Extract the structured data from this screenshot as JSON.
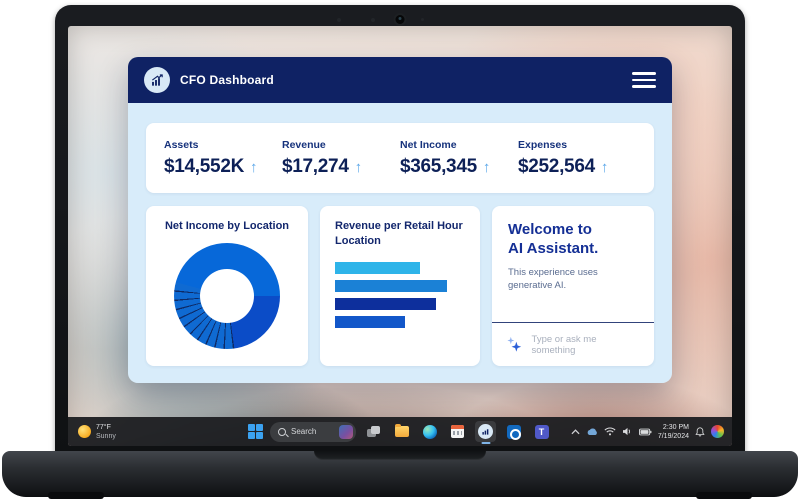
{
  "app": {
    "header": {
      "title": "CFO Dashboard"
    },
    "kpis": [
      {
        "label": "Assets",
        "value": "$14,552K",
        "arrow": "↑"
      },
      {
        "label": "Revenue",
        "value": "$17,274",
        "arrow": "↑"
      },
      {
        "label": "Net Income",
        "value": "$365,345",
        "arrow": "↑"
      },
      {
        "label": "Expenses",
        "value": "$252,564",
        "arrow": "↑"
      }
    ],
    "donut_card": {
      "title": "Net Income by Location"
    },
    "bars_card": {
      "title": "Revenue per Retail Hour Location"
    },
    "assistant": {
      "title_line1": "Welcome to",
      "title_line2": "AI Assistant.",
      "subtitle": "This experience uses generative AI.",
      "input_placeholder": "Type or ask me something",
      "sparkle_icon": "sparkle-icon",
      "accent_color": "#142f95"
    }
  },
  "chart_data": [
    {
      "type": "pie",
      "title": "Net Income by Location",
      "donut_hole_ratio": 0.51,
      "note": "values not labeled on screen; segment sizes estimated in degrees clockwise from top",
      "segments_display": [
        {
          "deg": 90,
          "color": "#0768d9"
        },
        {
          "deg": 82,
          "color": "#0b4cc7"
        },
        {
          "deg": 113,
          "color": "#0f6ad2",
          "slices": 11,
          "divider_color": "#0e2a66",
          "divider_deg": 1.6
        },
        {
          "deg": 75,
          "color": "#0768d9"
        }
      ]
    },
    {
      "type": "bar",
      "orientation": "horizontal",
      "title": "Revenue per Retail Hour Location",
      "note": "axis labels not shown on screen; bar lengths estimated as % of plot width",
      "values_percent": [
        65,
        86,
        78,
        54
      ],
      "colors": [
        "#2eb4e9",
        "#1b81d6",
        "#0d2f9c",
        "#1257c9"
      ]
    }
  ],
  "taskbar": {
    "weather": {
      "temp": "77°F",
      "condition": "Sunny",
      "icon": "sun-icon"
    },
    "search_label": "Search",
    "app_icons": [
      "start",
      "task-view",
      "file-explorer",
      "edge",
      "calendar",
      "cfo-dashboard-app",
      "outlook",
      "teams"
    ],
    "active_app": "cfo-dashboard-app",
    "tray": {
      "icons": [
        "hidden-icons-chevron",
        "onedrive",
        "wifi",
        "volume",
        "battery",
        "notifications-bell",
        "copilot"
      ],
      "time": "2:30 PM",
      "date": "7/19/2024"
    }
  },
  "colors": {
    "header_navy": "#0f2264",
    "app_background": "#d8ecfa",
    "kpi_text": "#0d2057",
    "kpi_arrow": "#5ba7e9",
    "taskbar": "#1e1f22"
  }
}
